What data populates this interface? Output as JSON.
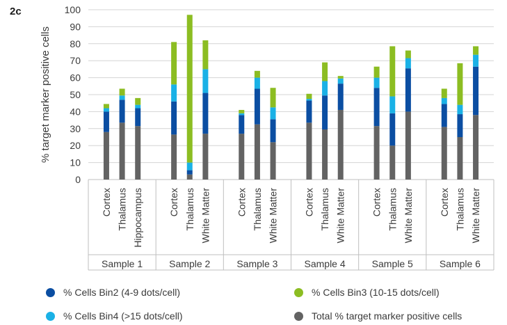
{
  "figure_label": "2c",
  "colors": {
    "total": "#636363",
    "bin2": "#0b4ea2",
    "bin4": "#1ab1e6",
    "bin3": "#8cbd22",
    "axis": "#bfbfbf",
    "grid": "#d4d4d4",
    "text": "#3a3a3a"
  },
  "chart_data": {
    "type": "bar",
    "stacked": true,
    "title": "",
    "xlabel": "",
    "ylabel": "% target marker positive cells",
    "ylim": [
      0,
      100
    ],
    "yticks": [
      0,
      10,
      20,
      30,
      40,
      50,
      60,
      70,
      80,
      90,
      100
    ],
    "grid": true,
    "legend_position": "bottom",
    "groups": [
      {
        "name": "Sample 1",
        "categories": [
          "Cortex",
          "Thalamus",
          "Hippocampus"
        ]
      },
      {
        "name": "Sample 2",
        "categories": [
          "Cortex",
          "Thalamus",
          "White Matter"
        ]
      },
      {
        "name": "Sample 3",
        "categories": [
          "Cortex",
          "Thalamus",
          "White Matter"
        ]
      },
      {
        "name": "Sample 4",
        "categories": [
          "Cortex",
          "Thalamus",
          "White Matter"
        ]
      },
      {
        "name": "Sample 5",
        "categories": [
          "Cortex",
          "Thalamus",
          "White Matter"
        ]
      },
      {
        "name": "Sample 6",
        "categories": [
          "Cortex",
          "Thalamus",
          "White Matter"
        ]
      }
    ],
    "series": [
      {
        "name": "Total % target marker positive cells",
        "color_key": "total",
        "values": [
          28,
          33.5,
          31.5,
          26.5,
          3,
          27,
          27,
          32.5,
          22,
          33.5,
          29.5,
          41,
          31.5,
          20,
          40,
          31,
          25,
          38
        ]
      },
      {
        "name": "% Cells Bin2 (4-9 dots/cell)",
        "color_key": "bin2",
        "values": [
          12,
          13.5,
          10.5,
          19.5,
          2.5,
          24,
          11,
          21,
          13.5,
          13,
          20,
          15.5,
          22.5,
          19,
          25.5,
          13.5,
          13.5,
          28.5
        ]
      },
      {
        "name": "% Cells Bin4 (>15 dots/cell)",
        "color_key": "bin4",
        "values": [
          2,
          2.5,
          2,
          10,
          4.5,
          14,
          1,
          6.5,
          7,
          1,
          8.5,
          3,
          6,
          10,
          6,
          3.5,
          5.5,
          7
        ]
      },
      {
        "name": "% Cells Bin3 (10-15 dots/cell)",
        "color_key": "bin3",
        "values": [
          2.5,
          4,
          4,
          25,
          87,
          17,
          2,
          4,
          11.5,
          3,
          11,
          1.5,
          6.5,
          29.5,
          4.5,
          5.5,
          24.5,
          5
        ]
      }
    ]
  },
  "legend": [
    {
      "label": "% Cells Bin2 (4-9 dots/cell)",
      "color_key": "bin2"
    },
    {
      "label": "% Cells Bin3 (10-15 dots/cell)",
      "color_key": "bin3"
    },
    {
      "label": "% Cells Bin4 (>15 dots/cell)",
      "color_key": "bin4"
    },
    {
      "label": "Total % target marker positive cells",
      "color_key": "total"
    }
  ]
}
